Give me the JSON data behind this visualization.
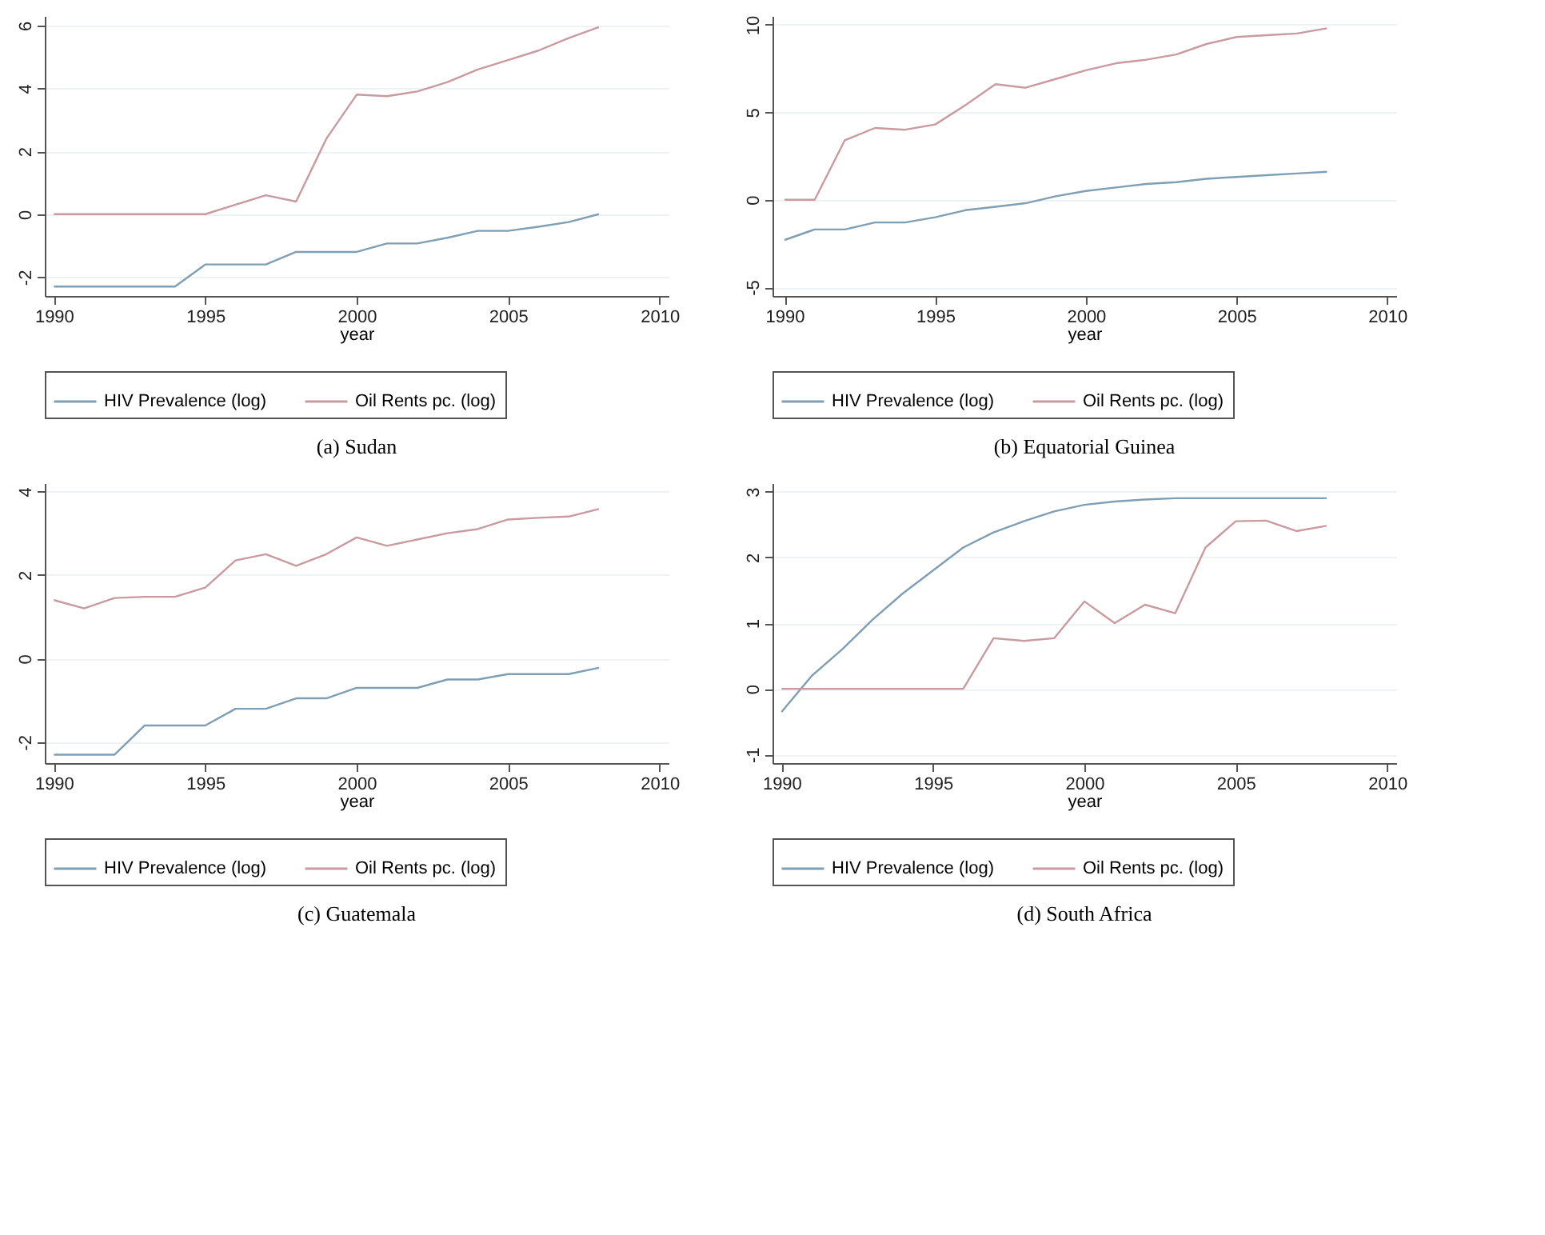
{
  "chart_data": [
    {
      "type": "line",
      "xlabel": "year",
      "annotations": [
        "(a) Sudan"
      ],
      "x": [
        1990,
        1991,
        1992,
        1993,
        1994,
        1995,
        1996,
        1997,
        1998,
        1999,
        2000,
        2001,
        2002,
        2003,
        2004,
        2005,
        2006,
        2007,
        2008
      ],
      "xlim": [
        1989.7,
        2010.3
      ],
      "xticks": [
        1990,
        1995,
        2000,
        2005,
        2010
      ],
      "ylim": [
        -2.6,
        6.3
      ],
      "yticks": [
        -2,
        0,
        2,
        4,
        6
      ],
      "grid": "y",
      "legend": "bottom",
      "series": [
        {
          "name": "HIV Prevalence (log)",
          "color": "#7f9fb5",
          "values": [
            -2.3,
            -2.3,
            -2.3,
            -2.3,
            -2.3,
            -1.6,
            -1.6,
            -1.6,
            -1.2,
            -1.2,
            -1.2,
            -0.93,
            -0.93,
            -0.75,
            -0.53,
            -0.53,
            -0.4,
            -0.25,
            0
          ]
        },
        {
          "name": "Oil Rents pc. (log)",
          "color": "#c99ba0",
          "values": [
            0,
            0,
            0,
            0,
            0,
            0,
            0.3,
            0.6,
            0.4,
            2.4,
            3.8,
            3.75,
            3.9,
            4.2,
            4.6,
            4.9,
            5.2,
            5.6,
            5.95
          ]
        }
      ]
    },
    {
      "type": "line",
      "xlabel": "year",
      "annotations": [
        "(b) Equatorial Guinea"
      ],
      "x": [
        1990,
        1991,
        1992,
        1993,
        1994,
        1995,
        1996,
        1997,
        1998,
        1999,
        2000,
        2001,
        2002,
        2003,
        2004,
        2005,
        2006,
        2007,
        2008
      ],
      "xlim": [
        1989.6,
        2010.3
      ],
      "xticks": [
        1990,
        1995,
        2000,
        2005,
        2010
      ],
      "ylim": [
        -5.5,
        10.5
      ],
      "yticks": [
        -5,
        0,
        5,
        10
      ],
      "grid": "y",
      "legend": "bottom",
      "series": [
        {
          "name": "HIV Prevalence (log)",
          "color": "#7f9fb5",
          "values": [
            -2.3,
            -1.7,
            -1.7,
            -1.3,
            -1.3,
            -1.0,
            -0.6,
            -0.4,
            -0.2,
            0.2,
            0.5,
            0.7,
            0.9,
            1.0,
            1.2,
            1.3,
            1.4,
            1.5,
            1.6
          ]
        },
        {
          "name": "Oil Rents pc. (log)",
          "color": "#c99ba0",
          "values": [
            0,
            0,
            3.4,
            4.1,
            4.0,
            4.3,
            5.4,
            6.6,
            6.4,
            6.9,
            7.4,
            7.8,
            8.0,
            8.3,
            8.9,
            9.3,
            9.4,
            9.5,
            9.8
          ]
        }
      ]
    },
    {
      "type": "line",
      "xlabel": "year",
      "annotations": [
        "(c) Guatemala"
      ],
      "x": [
        1990,
        1991,
        1992,
        1993,
        1994,
        1995,
        1996,
        1997,
        1998,
        1999,
        2000,
        2001,
        2002,
        2003,
        2004,
        2005,
        2006,
        2007,
        2008
      ],
      "xlim": [
        1989.7,
        2010.3
      ],
      "xticks": [
        1990,
        1995,
        2000,
        2005,
        2010
      ],
      "ylim": [
        -2.5,
        4.2
      ],
      "yticks": [
        -2,
        0,
        2,
        4
      ],
      "grid": "y",
      "legend": "bottom",
      "series": [
        {
          "name": "HIV Prevalence (log)",
          "color": "#7f9fb5",
          "values": [
            -2.3,
            -2.3,
            -2.3,
            -1.6,
            -1.6,
            -1.6,
            -1.2,
            -1.2,
            -0.95,
            -0.95,
            -0.7,
            -0.7,
            -0.7,
            -0.5,
            -0.5,
            -0.37,
            -0.37,
            -0.37,
            -0.22
          ]
        },
        {
          "name": "Oil Rents pc. (log)",
          "color": "#c99ba0",
          "values": [
            1.4,
            1.2,
            1.45,
            1.48,
            1.48,
            1.7,
            2.35,
            2.5,
            2.22,
            2.5,
            2.9,
            2.7,
            2.85,
            3.0,
            3.1,
            3.33,
            3.37,
            3.4,
            3.58
          ]
        }
      ]
    },
    {
      "type": "line",
      "xlabel": "year",
      "annotations": [
        "(d) South Africa"
      ],
      "x": [
        1990,
        1991,
        1992,
        1993,
        1994,
        1995,
        1996,
        1997,
        1998,
        1999,
        2000,
        2001,
        2002,
        2003,
        2004,
        2005,
        2006,
        2007,
        2008
      ],
      "xlim": [
        1989.7,
        2010.3
      ],
      "xticks": [
        1990,
        1995,
        2000,
        2005,
        2010
      ],
      "ylim": [
        -1.13,
        3.13
      ],
      "yticks": [
        -1,
        0,
        1,
        2,
        3
      ],
      "grid": "y",
      "legend": "bottom",
      "series": [
        {
          "name": "HIV Prevalence (log)",
          "color": "#7f9fb5",
          "values": [
            -0.35,
            0.2,
            0.6,
            1.05,
            1.45,
            1.8,
            2.15,
            2.38,
            2.55,
            2.7,
            2.8,
            2.85,
            2.88,
            2.9,
            2.9,
            2.9,
            2.9,
            2.9,
            2.9
          ]
        },
        {
          "name": "Oil Rents pc. (log)",
          "color": "#c99ba0",
          "values": [
            0,
            0,
            0,
            0,
            0,
            0,
            0,
            0.77,
            0.73,
            0.77,
            1.33,
            1.0,
            1.28,
            1.15,
            2.15,
            2.55,
            2.56,
            2.4,
            2.48
          ]
        }
      ]
    }
  ]
}
